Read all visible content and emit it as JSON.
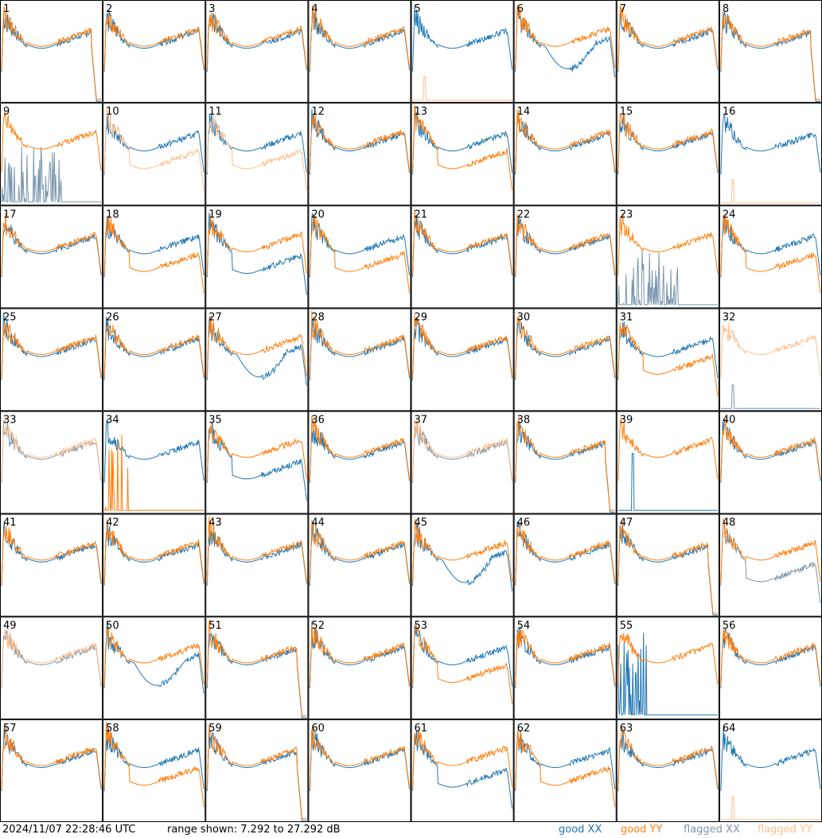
{
  "chart_data": {
    "type": "line",
    "title": "",
    "layout": "8x8 grid of small spectrum panels",
    "panels": [
      {
        "id": "1",
        "xx": "good",
        "yy": "good",
        "shape": "dropend"
      },
      {
        "id": "2",
        "xx": "good",
        "yy": "good",
        "shape": "normal"
      },
      {
        "id": "3",
        "xx": "good",
        "yy": "good",
        "shape": "normal"
      },
      {
        "id": "4",
        "xx": "good",
        "yy": "good",
        "shape": "normal"
      },
      {
        "id": "5",
        "xx": "good",
        "yy": "flagged",
        "shape": "xxonly"
      },
      {
        "id": "6",
        "xx": "good",
        "yy": "good",
        "shape": "xxdip"
      },
      {
        "id": "7",
        "xx": "good",
        "yy": "good",
        "shape": "normal"
      },
      {
        "id": "8",
        "xx": "good",
        "yy": "good",
        "shape": "dropend"
      },
      {
        "id": "9",
        "xx": "flagged",
        "yy": "good",
        "shape": "xxflagspikes"
      },
      {
        "id": "10",
        "xx": "good",
        "yy": "flagged",
        "shape": "yylow"
      },
      {
        "id": "11",
        "xx": "good",
        "yy": "flagged",
        "shape": "yylow"
      },
      {
        "id": "12",
        "xx": "good",
        "yy": "good",
        "shape": "normal"
      },
      {
        "id": "13",
        "xx": "good",
        "yy": "good",
        "shape": "yylow"
      },
      {
        "id": "14",
        "xx": "good",
        "yy": "good",
        "shape": "normal"
      },
      {
        "id": "15",
        "xx": "good",
        "yy": "good",
        "shape": "normal"
      },
      {
        "id": "16",
        "xx": "good",
        "yy": "flagged",
        "shape": "xxonly"
      },
      {
        "id": "17",
        "xx": "good",
        "yy": "good",
        "shape": "normal"
      },
      {
        "id": "18",
        "xx": "good",
        "yy": "good",
        "shape": "yylow"
      },
      {
        "id": "19",
        "xx": "good",
        "yy": "good",
        "shape": "xxlow"
      },
      {
        "id": "20",
        "xx": "good",
        "yy": "good",
        "shape": "yylow"
      },
      {
        "id": "21",
        "xx": "good",
        "yy": "good",
        "shape": "normal"
      },
      {
        "id": "22",
        "xx": "good",
        "yy": "good",
        "shape": "normal"
      },
      {
        "id": "23",
        "xx": "flagged",
        "yy": "good",
        "shape": "xxflagspikes"
      },
      {
        "id": "24",
        "xx": "good",
        "yy": "good",
        "shape": "yylow"
      },
      {
        "id": "25",
        "xx": "good",
        "yy": "good",
        "shape": "normal"
      },
      {
        "id": "26",
        "xx": "good",
        "yy": "good",
        "shape": "normal"
      },
      {
        "id": "27",
        "xx": "good",
        "yy": "good",
        "shape": "xxdip"
      },
      {
        "id": "28",
        "xx": "good",
        "yy": "good",
        "shape": "normal"
      },
      {
        "id": "29",
        "xx": "good",
        "yy": "good",
        "shape": "normal"
      },
      {
        "id": "30",
        "xx": "good",
        "yy": "good",
        "shape": "normal"
      },
      {
        "id": "31",
        "xx": "good",
        "yy": "good",
        "shape": "yylow"
      },
      {
        "id": "32",
        "xx": "flagged",
        "yy": "flagged",
        "shape": "yyonly"
      },
      {
        "id": "33",
        "xx": "flagged",
        "yy": "flagged",
        "shape": "normal"
      },
      {
        "id": "34",
        "xx": "good",
        "yy": "good",
        "shape": "yyspikes"
      },
      {
        "id": "35",
        "xx": "good",
        "yy": "good",
        "shape": "xxlow"
      },
      {
        "id": "36",
        "xx": "good",
        "yy": "good",
        "shape": "normal"
      },
      {
        "id": "37",
        "xx": "flagged",
        "yy": "flagged",
        "shape": "normal"
      },
      {
        "id": "38",
        "xx": "good",
        "yy": "good",
        "shape": "dropend"
      },
      {
        "id": "39",
        "xx": "good",
        "yy": "good",
        "shape": "xxspike"
      },
      {
        "id": "40",
        "xx": "good",
        "yy": "good",
        "shape": "normal"
      },
      {
        "id": "41",
        "xx": "good",
        "yy": "good",
        "shape": "normal"
      },
      {
        "id": "42",
        "xx": "good",
        "yy": "good",
        "shape": "normal"
      },
      {
        "id": "43",
        "xx": "good",
        "yy": "good",
        "shape": "normal"
      },
      {
        "id": "44",
        "xx": "good",
        "yy": "good",
        "shape": "normal"
      },
      {
        "id": "45",
        "xx": "good",
        "yy": "good",
        "shape": "xxdip"
      },
      {
        "id": "46",
        "xx": "good",
        "yy": "good",
        "shape": "normal"
      },
      {
        "id": "47",
        "xx": "good",
        "yy": "good",
        "shape": "dropend"
      },
      {
        "id": "48",
        "xx": "flagged",
        "yy": "good",
        "shape": "xxlow"
      },
      {
        "id": "49",
        "xx": "flagged",
        "yy": "flagged",
        "shape": "normal"
      },
      {
        "id": "50",
        "xx": "good",
        "yy": "good",
        "shape": "xxdip"
      },
      {
        "id": "51",
        "xx": "good",
        "yy": "good",
        "shape": "dropend"
      },
      {
        "id": "52",
        "xx": "good",
        "yy": "good",
        "shape": "normal"
      },
      {
        "id": "53",
        "xx": "good",
        "yy": "good",
        "shape": "yylow"
      },
      {
        "id": "54",
        "xx": "good",
        "yy": "good",
        "shape": "normal"
      },
      {
        "id": "55",
        "xx": "good",
        "yy": "good",
        "shape": "xxspikes"
      },
      {
        "id": "56",
        "xx": "good",
        "yy": "good",
        "shape": "normal"
      },
      {
        "id": "57",
        "xx": "good",
        "yy": "good",
        "shape": "normal"
      },
      {
        "id": "58",
        "xx": "good",
        "yy": "good",
        "shape": "yylow"
      },
      {
        "id": "59",
        "xx": "good",
        "yy": "good",
        "shape": "dropend"
      },
      {
        "id": "60",
        "xx": "good",
        "yy": "good",
        "shape": "normal"
      },
      {
        "id": "61",
        "xx": "good",
        "yy": "good",
        "shape": "xxlow"
      },
      {
        "id": "62",
        "xx": "good",
        "yy": "good",
        "shape": "yylow"
      },
      {
        "id": "63",
        "xx": "good",
        "yy": "good",
        "shape": "normal"
      },
      {
        "id": "64",
        "xx": "good",
        "yy": "flagged",
        "shape": "xxonly"
      }
    ]
  },
  "footer": {
    "timestamp": "2024/11/07 22:28:46 UTC",
    "range_text": "range shown: 7.292 to 27.292 dB"
  },
  "legend": [
    {
      "label": "good XX",
      "color": "#1f77b4"
    },
    {
      "label": "good YY",
      "color": "#ff7f0e"
    },
    {
      "label": "flagged XX",
      "color": "#7a96ad"
    },
    {
      "label": "flagged YY",
      "color": "#ffbf8c"
    }
  ],
  "colors": {
    "good_xx": "#1f77b4",
    "good_yy": "#ff7f0e",
    "flagged_xx": "#7a96ad",
    "flagged_yy": "#ffbf8c"
  }
}
